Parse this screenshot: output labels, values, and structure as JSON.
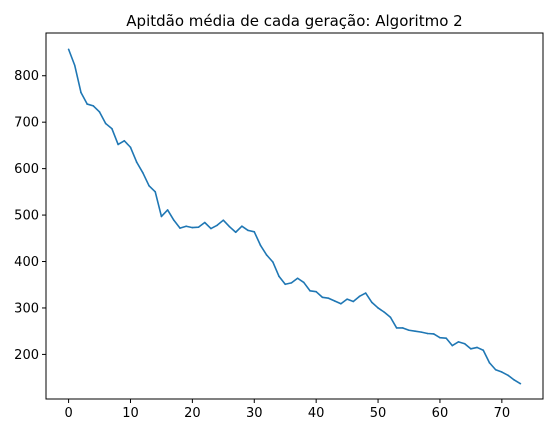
{
  "chart_data": {
    "type": "line",
    "title": "Apitdão média de cada geração: Algoritmo 2",
    "xlabel": "",
    "ylabel": "",
    "xlim": [
      -3.65,
      76.65
    ],
    "ylim": [
      104,
      892
    ],
    "xticks": [
      0,
      10,
      20,
      30,
      40,
      50,
      60,
      70
    ],
    "yticks": [
      200,
      300,
      400,
      500,
      600,
      700,
      800
    ],
    "grid": false,
    "series": [
      {
        "color": "#1f77b4",
        "x": [
          0,
          1,
          2,
          3,
          4,
          5,
          6,
          7,
          8,
          9,
          10,
          11,
          12,
          13,
          14,
          15,
          16,
          17,
          18,
          19,
          20,
          21,
          22,
          23,
          24,
          25,
          26,
          27,
          28,
          29,
          30,
          31,
          32,
          33,
          34,
          35,
          36,
          37,
          38,
          39,
          40,
          41,
          42,
          43,
          44,
          45,
          46,
          47,
          48,
          49,
          50,
          51,
          52,
          53,
          54,
          55,
          56,
          57,
          58,
          59,
          60,
          61,
          62,
          63,
          64,
          65,
          66,
          67,
          68,
          69,
          70,
          71,
          72,
          73
        ],
        "values": [
          857,
          822,
          764,
          739,
          735,
          722,
          697,
          686,
          652,
          660,
          646,
          614,
          591,
          563,
          550,
          497,
          511,
          489,
          472,
          476,
          473,
          474,
          484,
          471,
          478,
          489,
          475,
          463,
          476,
          467,
          464,
          435,
          414,
          399,
          368,
          351,
          354,
          364,
          355,
          337,
          335,
          323,
          321,
          315,
          309,
          319,
          314,
          325,
          332,
          312,
          300,
          291,
          280,
          257,
          257,
          252,
          250,
          248,
          245,
          244,
          236,
          235,
          219,
          227,
          223,
          212,
          215,
          209,
          182,
          167,
          162,
          155,
          145,
          137
        ]
      }
    ]
  }
}
